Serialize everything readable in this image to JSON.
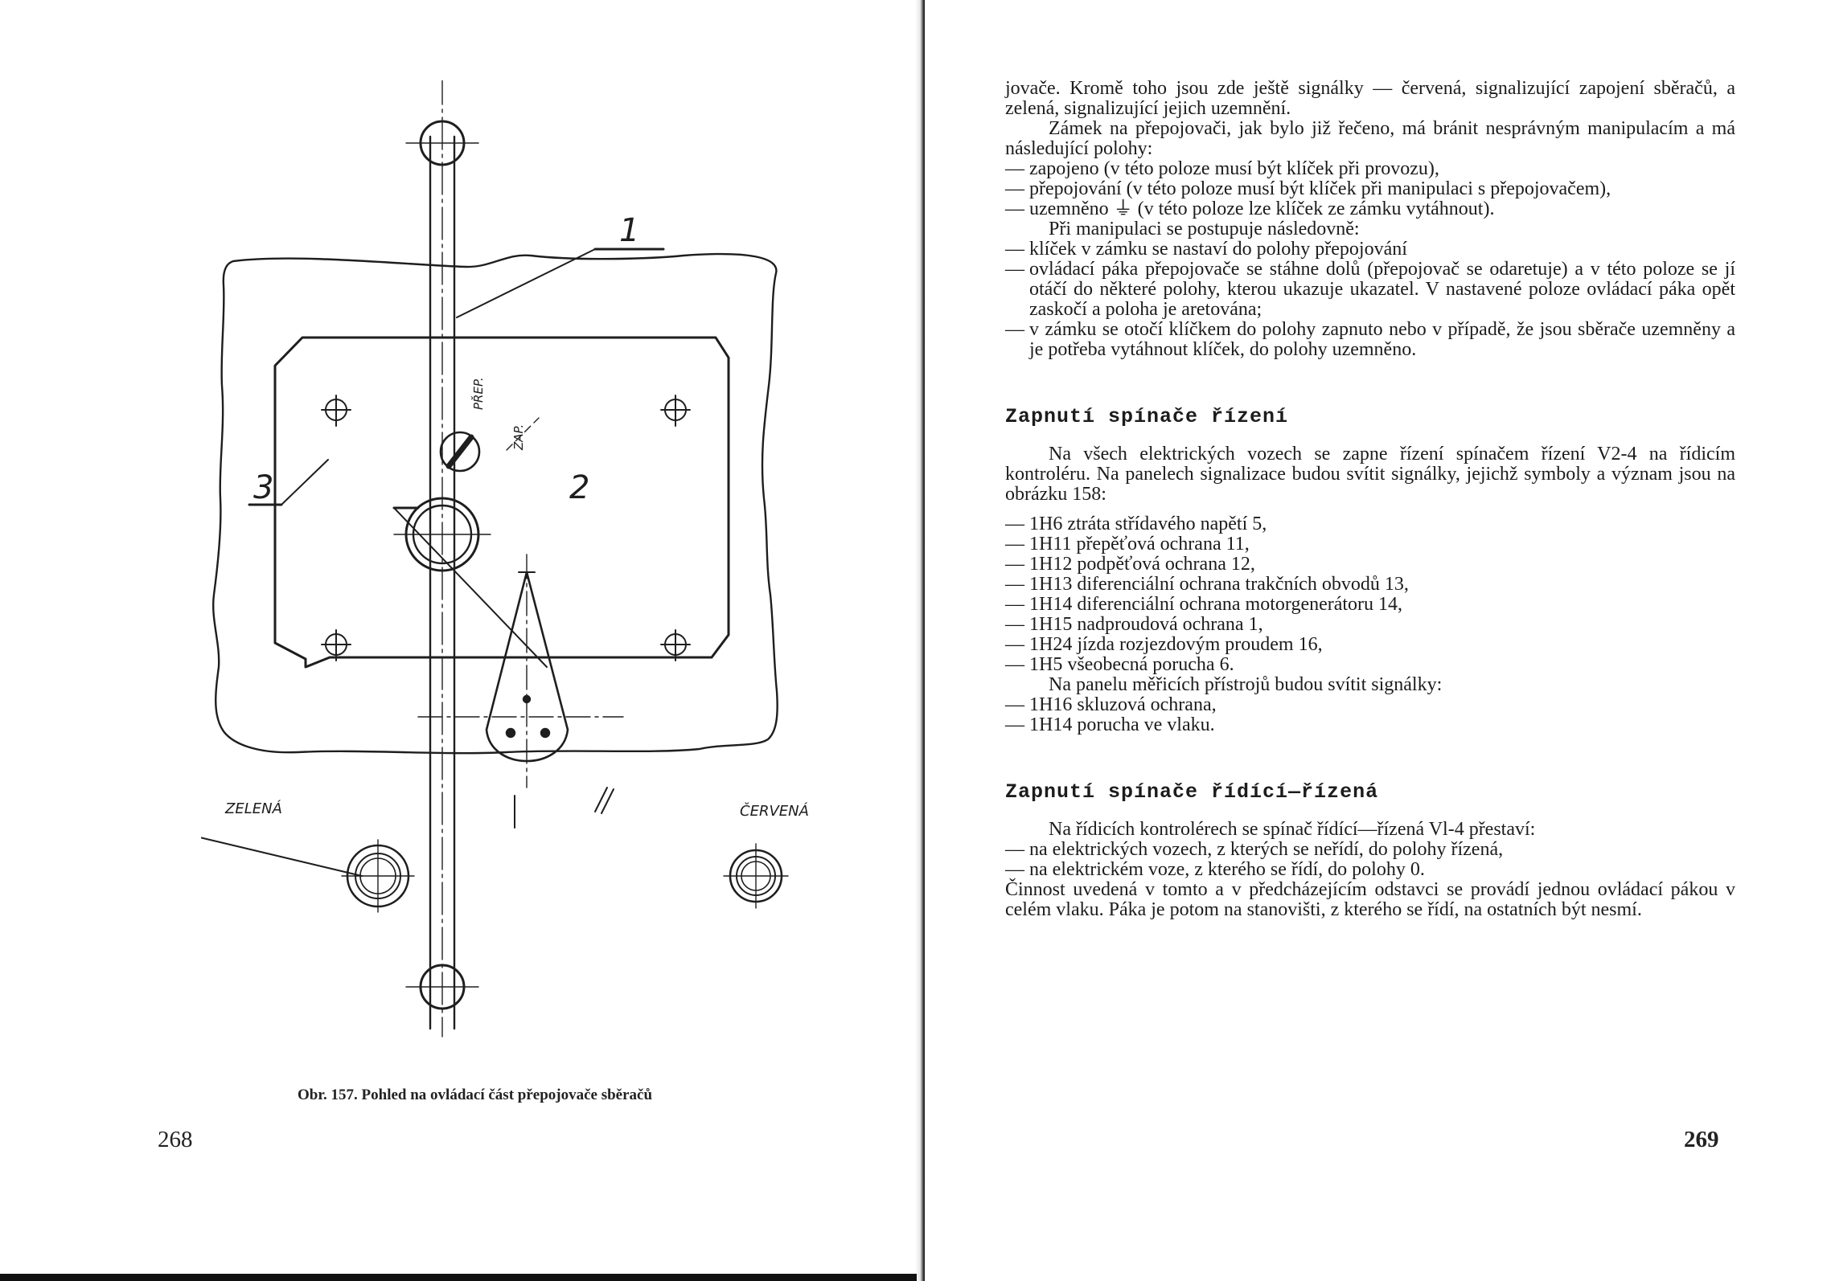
{
  "left_page": {
    "figure": {
      "callouts": [
        "1",
        "2",
        "3"
      ],
      "labels": {
        "zelena": "ZELENÁ",
        "cervena": "ČERVENÁ",
        "prep": "PŘEP.",
        "zap": "ZAP."
      }
    },
    "caption": "Obr. 157. Pohled na ovládací část přepojovače sběračů",
    "page_number": "268"
  },
  "right_page": {
    "page_number": "269",
    "intro": {
      "p1": "jovače. Kromě toho jsou zde ještě signálky — červená, signalizující zapojení sběračů, a zelená, signalizující jejich uzemnění.",
      "p2": "Zámek na přepojovači, jak bylo již řečeno, má bránit nesprávným manipulacím a má následující polohy:",
      "positions": [
        "zapojeno (v této poloze musí být klíček při provozu),",
        "přepojování (v této poloze musí být klíček při manipulaci s přepojovačem),",
        "uzemněno ⏚ (v této poloze lze klíček ze zámku vytáhnout)."
      ],
      "p3": "Při manipulaci se postupuje následovně:",
      "steps": [
        "klíček v zámku se nastaví do polohy přepojování",
        "ovládací páka přepojovače se stáhne dolů (přepojovač se odaretuje) a v této poloze se jí otáčí do některé polohy, kterou ukazuje ukazatel. V nastavené poloze ovládací páka opět zaskočí a poloha je aretována;",
        "v zámku se otočí klíčkem do polohy zapnuto nebo v případě, že jsou sběrače uzemněny a je potřeba vytáhnout klíček, do polohy uzemněno."
      ]
    },
    "section1": {
      "heading": "Zapnutí spínače řízení",
      "p1": "Na všech elektrických vozech se zapne řízení spínačem řízení V2-4 na řídicím kontroléru. Na panelech signalizace budou svítit signálky, jejichž symboly a význam jsou na obrázku 158:",
      "items": [
        "1H6 ztráta střídavého napětí 5,",
        "1H11 přepěťová ochrana 11,",
        "1H12 podpěťová ochrana 12,",
        "1H13 diferenciální ochrana trakčních obvodů 13,",
        "1H14 diferenciální ochrana motorgenerátoru 14,",
        "1H15 nadproudová ochrana 1,",
        "1H24 jízda rozjezdovým proudem 16,",
        "1H5 všeobecná porucha 6."
      ],
      "p2": "Na panelu měřicích přístrojů budou svítit signálky:",
      "items2": [
        "1H16 skluzová ochrana,",
        "1H14 porucha ve vlaku."
      ]
    },
    "section2": {
      "heading": "Zapnutí spínače řídící—řízená",
      "p1": "Na řídicích kontrolérech se spínač řídící—řízená Vl-4 přestaví:",
      "items": [
        "na elektrických vozech, z kterých se neřídí, do polohy řízená,",
        "na elektrickém voze, z kterého se řídí, do polohy 0."
      ],
      "p2": "Činnost uvedená v tomto a v předcházejícím odstavci se provádí jednou ovládací pákou v celém vlaku. Páka je potom na stanovišti, z kterého se řídí, na ostatních být nesmí."
    }
  }
}
